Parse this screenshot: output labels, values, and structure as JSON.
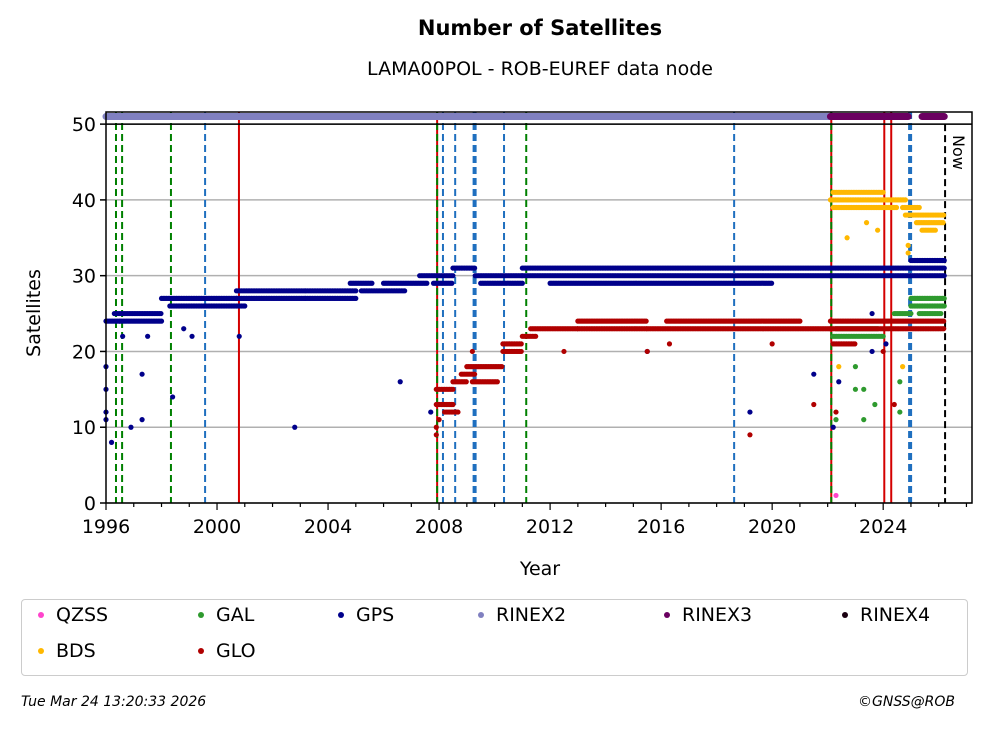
{
  "chart_data": {
    "type": "scatter",
    "title": "Number of Satellites",
    "subtitle": "LAMA00POL - ROB-EUREF data node",
    "xlabel": "Year",
    "ylabel": "Satellites",
    "xlim": [
      1996,
      2027.2
    ],
    "ylim": [
      0,
      51.6
    ],
    "xticks": [
      1996,
      2000,
      2004,
      2008,
      2012,
      2016,
      2020,
      2024
    ],
    "yticks": [
      0,
      10,
      20,
      30,
      40,
      50
    ],
    "grid": "horizontal",
    "now_label": "Now",
    "now_year": 2026.23,
    "vlines": [
      {
        "x": 1996.36,
        "color": "#008000",
        "style": "dashed"
      },
      {
        "x": 1996.58,
        "color": "#008000",
        "style": "dashed"
      },
      {
        "x": 1998.34,
        "color": "#008000",
        "style": "dashed"
      },
      {
        "x": 1999.57,
        "color": "#1f6fbf",
        "style": "dashed"
      },
      {
        "x": 2000.79,
        "color": "#d40000",
        "style": "solid"
      },
      {
        "x": 2007.93,
        "color": "#d40000",
        "style": "solid"
      },
      {
        "x": 2007.93,
        "color": "#008000",
        "style": "dashed"
      },
      {
        "x": 2008.14,
        "color": "#1f6fbf",
        "style": "dashed"
      },
      {
        "x": 2008.58,
        "color": "#1f6fbf",
        "style": "dashed"
      },
      {
        "x": 2009.28,
        "color": "#1f6fbf",
        "style": "dashed-thick"
      },
      {
        "x": 2010.34,
        "color": "#1f6fbf",
        "style": "dashed"
      },
      {
        "x": 2011.14,
        "color": "#008000",
        "style": "dashed"
      },
      {
        "x": 2018.63,
        "color": "#1f6fbf",
        "style": "dashed"
      },
      {
        "x": 2022.13,
        "color": "#d40000",
        "style": "solid"
      },
      {
        "x": 2022.13,
        "color": "#008000",
        "style": "dashed"
      },
      {
        "x": 2024.04,
        "color": "#d40000",
        "style": "solid"
      },
      {
        "x": 2024.29,
        "color": "#d40000",
        "style": "solid"
      },
      {
        "x": 2024.97,
        "color": "#1f6fbf",
        "style": "dashed-thick"
      }
    ],
    "series": [
      {
        "name": "QZSS",
        "color": "#ff44cc",
        "segments": [],
        "points": [
          [
            2022.3,
            1
          ]
        ]
      },
      {
        "name": "GAL",
        "color": "#2e9a2e",
        "segments": [
          [
            2022.2,
            2024.0,
            22
          ],
          [
            2022.3,
            2023.8,
            23
          ],
          [
            2024.4,
            2025.0,
            25
          ],
          [
            2025.0,
            2026.2,
            27
          ],
          [
            2025.0,
            2026.2,
            26
          ],
          [
            2025.3,
            2026.1,
            25
          ]
        ],
        "points": [
          [
            2022.3,
            11
          ],
          [
            2023.0,
            18
          ],
          [
            2023.0,
            15
          ],
          [
            2023.3,
            11
          ],
          [
            2023.3,
            15
          ],
          [
            2023.7,
            13
          ],
          [
            2024.6,
            12
          ],
          [
            2024.6,
            16
          ]
        ]
      },
      {
        "name": "GPS",
        "color": "#00008b",
        "segments": [
          [
            1996,
            1996.5,
            24
          ],
          [
            1996.3,
            1998,
            25
          ],
          [
            1996.5,
            1998,
            24
          ],
          [
            1998,
            2000.7,
            27
          ],
          [
            1998.3,
            2001,
            26
          ],
          [
            2000.7,
            2003.2,
            28
          ],
          [
            2000.7,
            2003.2,
            27
          ],
          [
            2003.2,
            2005,
            28
          ],
          [
            2003.2,
            2005,
            27
          ],
          [
            2004.8,
            2005.6,
            29
          ],
          [
            2005.2,
            2006.8,
            28
          ],
          [
            2006,
            2007.6,
            29
          ],
          [
            2007.3,
            2008.5,
            30
          ],
          [
            2007.8,
            2008.5,
            29
          ],
          [
            2008.5,
            2009.3,
            31
          ],
          [
            2009.3,
            2011,
            30
          ],
          [
            2009.5,
            2011,
            29
          ],
          [
            2011,
            2022.1,
            31
          ],
          [
            2011,
            2022.1,
            30
          ],
          [
            2012,
            2020,
            29
          ],
          [
            2022.1,
            2025,
            31
          ],
          [
            2022.1,
            2025,
            30
          ],
          [
            2025,
            2026.2,
            32
          ],
          [
            2025,
            2026.2,
            31
          ],
          [
            2025,
            2026.2,
            30
          ]
        ],
        "points": [
          [
            1996,
            18
          ],
          [
            1996,
            15
          ],
          [
            1996,
            12
          ],
          [
            1996,
            11
          ],
          [
            1996.2,
            8
          ],
          [
            1996.6,
            22
          ],
          [
            1996.9,
            10
          ],
          [
            1997.3,
            17
          ],
          [
            1997.3,
            11
          ],
          [
            1997.5,
            22
          ],
          [
            1998.4,
            14
          ],
          [
            1998.8,
            23
          ],
          [
            1999.1,
            22
          ],
          [
            2000.8,
            22
          ],
          [
            2002.8,
            10
          ],
          [
            2006.6,
            16
          ],
          [
            2007.7,
            12
          ],
          [
            2015.5,
            20
          ],
          [
            2019.2,
            12
          ],
          [
            2021.5,
            17
          ],
          [
            2022.2,
            10
          ],
          [
            2022.4,
            16
          ],
          [
            2023.6,
            25
          ],
          [
            2023.6,
            20
          ],
          [
            2024.1,
            21
          ]
        ]
      },
      {
        "name": "RINEX2",
        "color": "#8080c0",
        "segments": [
          [
            1996,
            2022.1,
            51
          ]
        ],
        "points": []
      },
      {
        "name": "RINEX3",
        "color": "#6a0060",
        "segments": [
          [
            2022.1,
            2024.9,
            51
          ],
          [
            2025.4,
            2026.2,
            51
          ]
        ],
        "points": []
      },
      {
        "name": "RINEX4",
        "color": "#1a0010",
        "segments": [],
        "points": []
      },
      {
        "name": "BDS",
        "color": "#ffb800",
        "segments": [
          [
            2022.2,
            2024.0,
            41
          ],
          [
            2022.1,
            2024.8,
            40
          ],
          [
            2022.2,
            2024.5,
            39
          ],
          [
            2024.7,
            2025.3,
            39
          ],
          [
            2024.8,
            2026.2,
            38
          ],
          [
            2025.2,
            2026.2,
            37
          ],
          [
            2025.4,
            2025.9,
            36
          ]
        ],
        "points": [
          [
            2022.7,
            35
          ],
          [
            2023.4,
            37
          ],
          [
            2023.8,
            36
          ],
          [
            2024.9,
            34
          ],
          [
            2024.9,
            33
          ],
          [
            2022.4,
            18
          ],
          [
            2024.7,
            18
          ]
        ]
      },
      {
        "name": "GLO",
        "color": "#b00000",
        "segments": [
          [
            2007.9,
            2008.5,
            13
          ],
          [
            2007.9,
            2008.5,
            15
          ],
          [
            2008.2,
            2008.7,
            12
          ],
          [
            2008.5,
            2009.0,
            16
          ],
          [
            2008.8,
            2009.3,
            17
          ],
          [
            2009.0,
            2010.3,
            18
          ],
          [
            2009.2,
            2010.1,
            16
          ],
          [
            2010.3,
            2011.0,
            20
          ],
          [
            2010.3,
            2011.0,
            21
          ],
          [
            2011.0,
            2011.5,
            22
          ],
          [
            2011.3,
            2013,
            23
          ],
          [
            2013,
            2015.5,
            24
          ],
          [
            2013,
            2015.5,
            23
          ],
          [
            2015.5,
            2022.1,
            23
          ],
          [
            2016.2,
            2021,
            24
          ],
          [
            2022.1,
            2026.2,
            24
          ],
          [
            2022.1,
            2026.2,
            23
          ],
          [
            2022.2,
            2023,
            21
          ]
        ],
        "points": [
          [
            2007.9,
            9
          ],
          [
            2007.9,
            10
          ],
          [
            2008.0,
            11
          ],
          [
            2009.2,
            20
          ],
          [
            2012.5,
            20
          ],
          [
            2015.5,
            20
          ],
          [
            2016.3,
            21
          ],
          [
            2019.2,
            9
          ],
          [
            2020,
            21
          ],
          [
            2021.5,
            13
          ],
          [
            2022.3,
            12
          ],
          [
            2024.0,
            20
          ],
          [
            2024.4,
            13
          ]
        ]
      }
    ]
  },
  "legend": [
    "QZSS",
    "GAL",
    "GPS",
    "RINEX2",
    "RINEX3",
    "RINEX4",
    "BDS",
    "GLO"
  ],
  "footer": {
    "timestamp": "Tue Mar 24 13:20:33 2026",
    "credit": "©GNSS@ROB"
  }
}
